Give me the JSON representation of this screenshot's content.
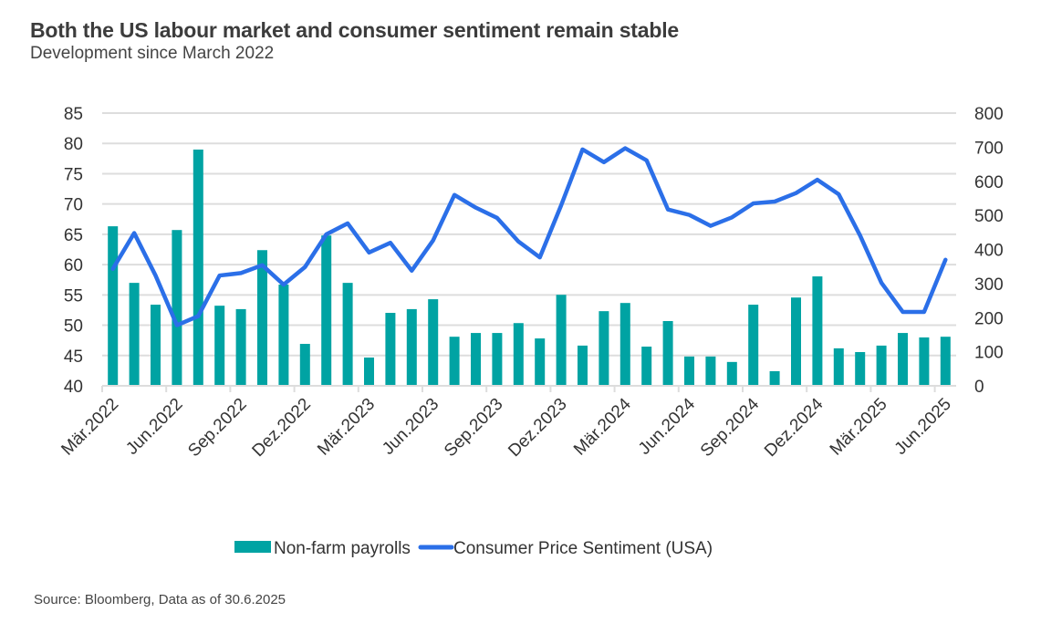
{
  "title": "Both the US labour market and consumer sentiment remain stable",
  "subtitle": "Development since March 2022",
  "source": "Source: Bloomberg, Data as of 30.6.2025",
  "colors": {
    "bars": "#00A3A3",
    "line": "#2B6FE8",
    "grid": "#DDDDDD"
  },
  "chart_data": {
    "type": "bar+line",
    "title": "Both the US labour market and consumer sentiment remain stable",
    "subtitle": "Development since March 2022",
    "categories": [
      "Mär.2022",
      "Apr.2022",
      "Mai.2022",
      "Jun.2022",
      "Jul.2022",
      "Aug.2022",
      "Sep.2022",
      "Okt.2022",
      "Nov.2022",
      "Dez.2022",
      "Jan.2023",
      "Feb.2023",
      "Mär.2023",
      "Apr.2023",
      "Mai.2023",
      "Jun.2023",
      "Jul.2023",
      "Aug.2023",
      "Sep.2023",
      "Okt.2023",
      "Nov.2023",
      "Dez.2023",
      "Jan.2024",
      "Feb.2024",
      "Mär.2024",
      "Apr.2024",
      "Mai.2024",
      "Jun.2024",
      "Jul.2024",
      "Aug.2024",
      "Sep.2024",
      "Okt.2024",
      "Nov.2024",
      "Dez.2024",
      "Jan.2025",
      "Feb.2025",
      "Mär.2025",
      "Apr.2025",
      "Mai.2025",
      "Jun.2025"
    ],
    "x_tick_labels": [
      "Mär.2022",
      "Jun.2022",
      "Sep.2022",
      "Dez.2022",
      "Mär.2023",
      "Jun.2023",
      "Sep.2023",
      "Dez.2023",
      "Mär.2024",
      "Jun.2024",
      "Sep.2024",
      "Dez.2024",
      "Mär.2025",
      "Jun.2025"
    ],
    "series": [
      {
        "name": "Non-farm payrolls",
        "type": "bar",
        "axis": "right",
        "values": [
          468,
          302,
          238,
          457,
          693,
          235,
          225,
          398,
          297,
          123,
          441,
          302,
          83,
          214,
          225,
          254,
          144,
          155,
          155,
          184,
          139,
          267,
          118,
          219,
          243,
          115,
          190,
          86,
          86,
          70,
          238,
          43,
          259,
          321,
          110,
          99,
          118,
          155,
          142,
          144
        ]
      },
      {
        "name": "Consumer Price Sentiment (USA)",
        "type": "line",
        "axis": "left",
        "values": [
          59.3,
          65.2,
          58.2,
          50.0,
          51.5,
          58.2,
          58.6,
          59.9,
          56.7,
          59.6,
          65.0,
          66.8,
          62.0,
          63.6,
          59.0,
          64.0,
          71.5,
          69.4,
          67.7,
          63.8,
          61.2,
          69.8,
          79.0,
          76.9,
          79.2,
          77.2,
          69.1,
          68.2,
          66.4,
          67.8,
          70.1,
          70.4,
          71.8,
          74.0,
          71.6,
          64.8,
          57.0,
          52.2,
          52.2,
          60.8
        ]
      }
    ],
    "y_left": {
      "ylim": [
        40,
        85
      ],
      "ticks": [
        40,
        45,
        50,
        55,
        60,
        65,
        70,
        75,
        80,
        85
      ]
    },
    "y_right": {
      "ylim": [
        0,
        800
      ],
      "ticks": [
        0,
        100,
        200,
        300,
        400,
        500,
        600,
        700,
        800
      ]
    },
    "xlabel": "",
    "ylabel": "",
    "grid": true,
    "legend": {
      "position": "bottom",
      "entries": [
        "Non-farm payrolls",
        "Consumer Price Sentiment (USA)"
      ]
    }
  }
}
